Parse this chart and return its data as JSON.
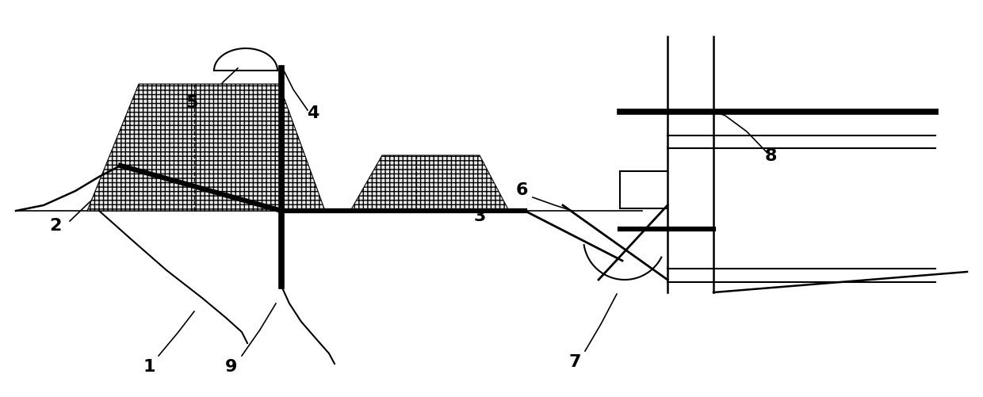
{
  "figsize": [
    12.4,
    5.01
  ],
  "dpi": 100,
  "bg_color": "#ffffff",
  "line_color": "#000000",
  "fill_color": "#e8e8e8",
  "label_fontsize": 16,
  "xlim": [
    0,
    12.4
  ],
  "ylim": [
    0,
    5.01
  ]
}
